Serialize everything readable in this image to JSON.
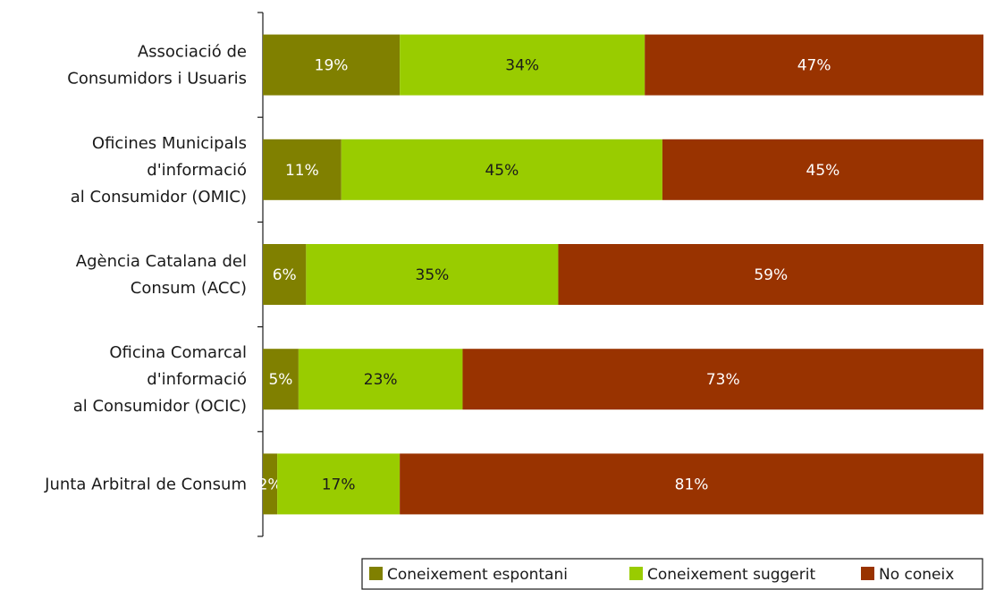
{
  "chart_data": {
    "type": "bar",
    "orientation": "horizontal",
    "stacked": true,
    "percent_stacked": true,
    "categories": [
      [
        "Associació de",
        "Consumidors i Usuaris"
      ],
      [
        "Oficines Municipals",
        "d'informació",
        "al Consumidor (OMIC)"
      ],
      [
        "Agència Catalana del",
        "Consum (ACC)"
      ],
      [
        "Oficina Comarcal",
        "d'informació",
        "al Consumidor (OCIC)"
      ],
      [
        "Junta Arbitral de Consum"
      ]
    ],
    "series": [
      {
        "name": "Coneixement espontani",
        "values": [
          19,
          11,
          6,
          5,
          2
        ],
        "labels": [
          "19%",
          "11%",
          "6%",
          "5%",
          "2%"
        ],
        "color": "#808000",
        "label_color": "#ffffff"
      },
      {
        "name": "Coneixement suggerit",
        "values": [
          34,
          45,
          35,
          23,
          17
        ],
        "labels": [
          "34%",
          "45%",
          "35%",
          "23%",
          "17%"
        ],
        "color": "#99cc00",
        "label_color": "#1a1a1a"
      },
      {
        "name": "No coneix",
        "values": [
          47,
          45,
          59,
          73,
          81
        ],
        "labels": [
          "47%",
          "45%",
          "59%",
          "73%",
          "81%"
        ],
        "color": "#993300",
        "label_color": "#ffffff"
      }
    ],
    "legend_position": "bottom-right",
    "grid": false
  }
}
